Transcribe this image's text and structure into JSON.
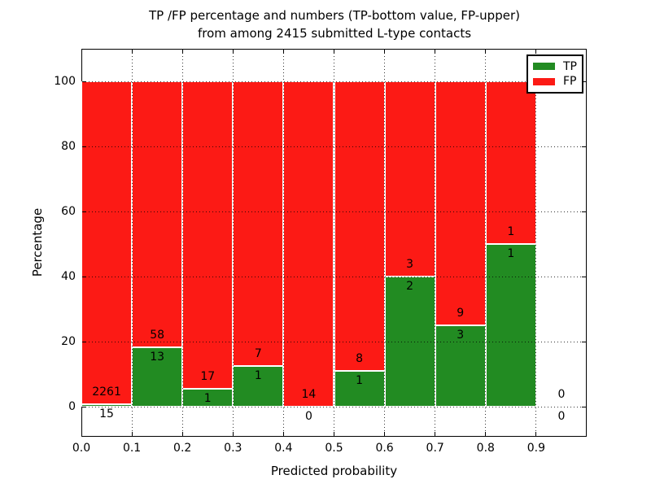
{
  "title": {
    "line1": "TP /FP percentage and numbers (TP-bottom value, FP-upper)",
    "line2": "from among 2415 submitted L-type contacts"
  },
  "axes": {
    "x_label": "Predicted probability",
    "y_label": "Percentage"
  },
  "legend": {
    "items": [
      {
        "label": "TP",
        "color": "#228b22"
      },
      {
        "label": "FP",
        "color": "#fc1a15"
      }
    ]
  },
  "chart_data": {
    "type": "bar",
    "stacked": true,
    "title": "TP /FP percentage and numbers (TP-bottom value, FP-upper) from among 2415 submitted L-type contacts",
    "xlabel": "Predicted probability",
    "ylabel": "Percentage",
    "xlim": [
      0.0,
      1.0
    ],
    "ylim": [
      -10,
      110
    ],
    "grid": true,
    "legend_position": "upper right",
    "x_tick_labels": [
      "0.0",
      "0.1",
      "0.2",
      "0.3",
      "0.4",
      "0.5",
      "0.6",
      "0.7",
      "0.8",
      "0.9"
    ],
    "y_ticks": [
      0,
      20,
      40,
      60,
      80,
      100
    ],
    "colors": {
      "tp": "#228b22",
      "fp": "#fc1a15"
    },
    "total_contacts": 2415,
    "bins": [
      {
        "range": [
          0.0,
          0.1
        ],
        "tp_count": 15,
        "fp_count": 2261,
        "tp_pct": 0.66,
        "has_bar": true
      },
      {
        "range": [
          0.1,
          0.2
        ],
        "tp_count": 13,
        "fp_count": 58,
        "tp_pct": 18.31,
        "has_bar": true
      },
      {
        "range": [
          0.2,
          0.3
        ],
        "tp_count": 1,
        "fp_count": 17,
        "tp_pct": 5.56,
        "has_bar": true
      },
      {
        "range": [
          0.3,
          0.4
        ],
        "tp_count": 1,
        "fp_count": 7,
        "tp_pct": 12.5,
        "has_bar": true
      },
      {
        "range": [
          0.4,
          0.5
        ],
        "tp_count": 0,
        "fp_count": 14,
        "tp_pct": 0,
        "has_bar": true
      },
      {
        "range": [
          0.5,
          0.6
        ],
        "tp_count": 1,
        "fp_count": 8,
        "tp_pct": 11.11,
        "has_bar": true
      },
      {
        "range": [
          0.6,
          0.7
        ],
        "tp_count": 2,
        "fp_count": 3,
        "tp_pct": 40,
        "has_bar": true
      },
      {
        "range": [
          0.7,
          0.8
        ],
        "tp_count": 3,
        "fp_count": 9,
        "tp_pct": 25,
        "has_bar": true
      },
      {
        "range": [
          0.8,
          0.9
        ],
        "tp_count": 1,
        "fp_count": 1,
        "tp_pct": 50,
        "has_bar": true
      },
      {
        "range": [
          0.9,
          1.0
        ],
        "tp_count": 0,
        "fp_count": 0,
        "tp_pct": 0,
        "has_bar": false
      }
    ]
  }
}
